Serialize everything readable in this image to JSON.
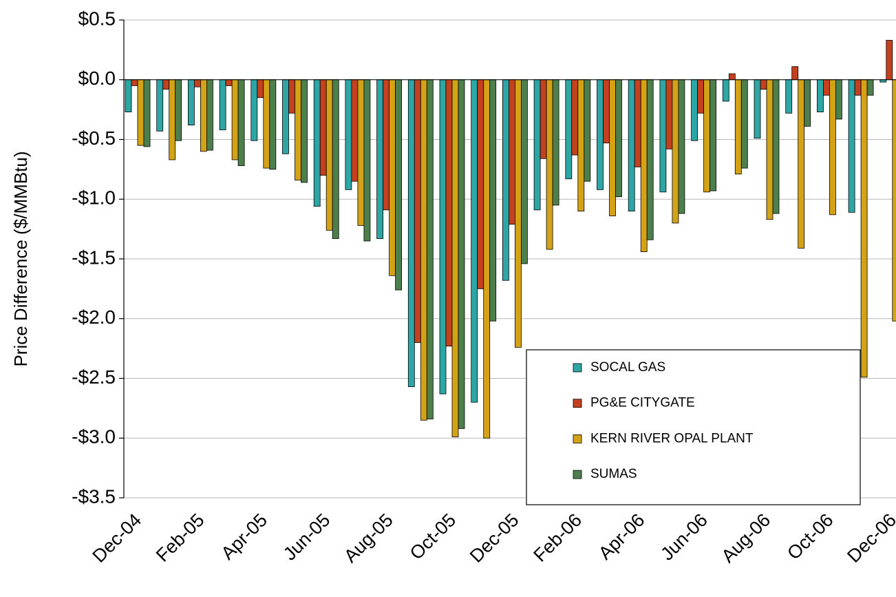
{
  "chart_data": {
    "type": "bar",
    "y_label": "Price Difference ($/MMBtu)",
    "categories": [
      "Dec-04",
      null,
      "Feb-05",
      null,
      "Apr-05",
      null,
      "Jun-05",
      null,
      "Aug-05",
      null,
      "Oct-05",
      null,
      "Dec-05",
      null,
      "Feb-06",
      null,
      "Apr-06",
      null,
      "Jun-06",
      null,
      "Aug-06",
      null,
      "Oct-06",
      null,
      "Dec-06"
    ],
    "series": [
      {
        "name": "SOCAL GAS",
        "color": "#2ea6a6",
        "values": [
          -0.27,
          -0.43,
          -0.38,
          -0.42,
          -0.51,
          -0.62,
          -1.06,
          -0.92,
          -1.33,
          -2.57,
          -2.63,
          -2.7,
          -1.68,
          -1.09,
          -0.83,
          -0.92,
          -1.1,
          -0.94,
          -0.51,
          -0.18,
          -0.49,
          -0.28,
          -0.27,
          -1.11,
          -0.02
        ]
      },
      {
        "name": "PG&E CITYGATE",
        "color": "#c4411f",
        "values": [
          -0.05,
          -0.08,
          -0.06,
          -0.05,
          -0.15,
          -0.28,
          -0.8,
          -0.85,
          -1.09,
          -2.2,
          -2.23,
          -1.75,
          -1.21,
          -0.66,
          -0.63,
          -0.53,
          -0.73,
          -0.58,
          -0.28,
          0.05,
          -0.08,
          0.11,
          -0.13,
          -0.13,
          0.33
        ]
      },
      {
        "name": "KERN RIVER OPAL PLANT",
        "color": "#d4a216",
        "values": [
          -0.55,
          -0.67,
          -0.6,
          -0.67,
          -0.74,
          -0.84,
          -1.26,
          -1.22,
          -1.64,
          -2.85,
          -2.99,
          -3.0,
          -2.24,
          -1.42,
          -1.1,
          -1.14,
          -1.44,
          -1.2,
          -0.94,
          -0.79,
          -1.17,
          -1.41,
          -1.13,
          -2.49,
          -2.02
        ]
      },
      {
        "name": "SUMAS",
        "color": "#4d7f4d",
        "values": [
          -0.56,
          -0.51,
          -0.59,
          -0.72,
          -0.75,
          -0.86,
          -1.33,
          -1.35,
          -1.76,
          -2.84,
          -2.92,
          -2.02,
          -1.54,
          -1.05,
          -0.85,
          -0.98,
          -1.34,
          -1.12,
          -0.93,
          -0.74,
          -1.12,
          -0.39,
          -0.33,
          -0.13,
          null
        ]
      }
    ],
    "ylim": [
      -3.5,
      0.5
    ],
    "yticks": [
      {
        "value": -3.5,
        "label": "-$3.5"
      },
      {
        "value": -3.0,
        "label": "-$3.0"
      },
      {
        "value": -2.5,
        "label": "-$2.5"
      },
      {
        "value": -2.0,
        "label": "-$2.0"
      },
      {
        "value": -1.5,
        "label": "-$1.5"
      },
      {
        "value": -1.0,
        "label": "-$1.0"
      },
      {
        "value": -0.5,
        "label": "-$0.5"
      },
      {
        "value": 0.0,
        "label": "$0.0"
      },
      {
        "value": 0.5,
        "label": "$0.5"
      }
    ],
    "grid": true,
    "legend": "lower-right"
  }
}
